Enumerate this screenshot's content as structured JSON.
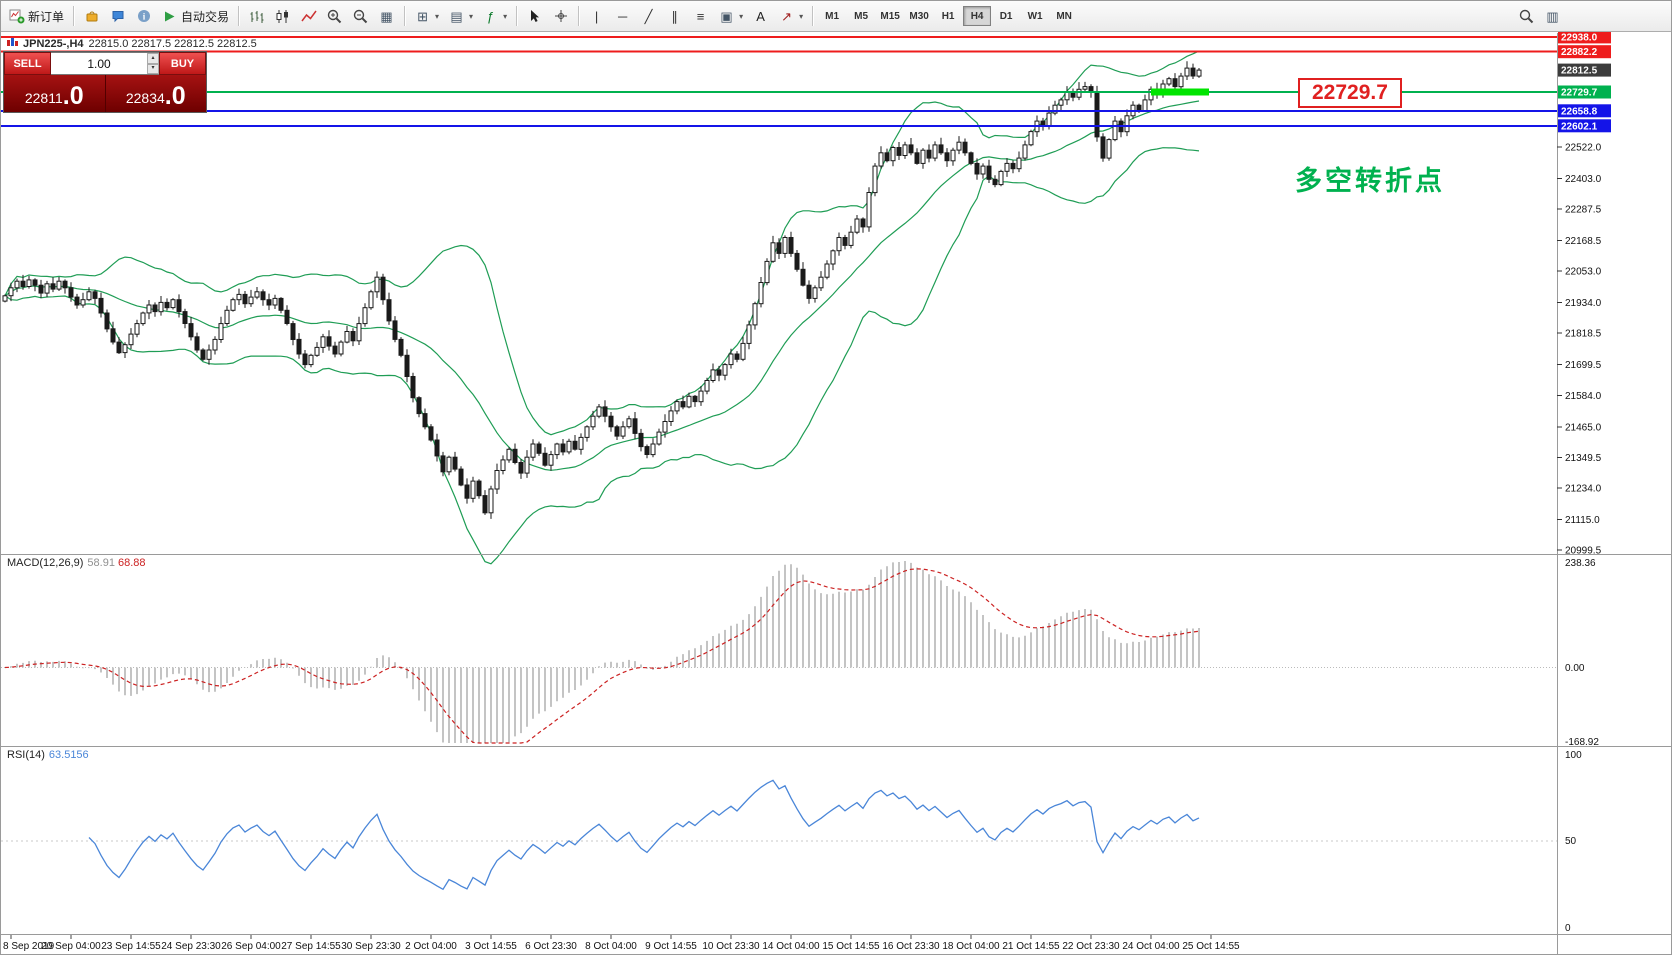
{
  "toolbar": {
    "items": [
      {
        "type": "button",
        "name": "new-order",
        "icon": "new-order-icon",
        "label": "新订单"
      },
      {
        "type": "sep"
      },
      {
        "type": "icon",
        "name": "market",
        "icon": "market-icon"
      },
      {
        "type": "icon",
        "name": "community",
        "icon": "community-icon"
      },
      {
        "type": "icon",
        "name": "info",
        "icon": "info-icon"
      },
      {
        "type": "button",
        "name": "autotrading",
        "icon": "autotrading-play-icon",
        "label": "自动交易"
      },
      {
        "type": "sep"
      },
      {
        "type": "icon",
        "name": "bar-chart",
        "icon": "bar-chart-icon"
      },
      {
        "type": "icon",
        "name": "candlestick-chart",
        "icon": "candlestick-chart-icon"
      },
      {
        "type": "icon",
        "name": "line-chart",
        "icon": "line-chart-icon"
      },
      {
        "type": "icon",
        "name": "zoom-in",
        "icon": "zoom-in-icon"
      },
      {
        "type": "icon",
        "name": "zoom-out",
        "icon": "zoom-out-icon"
      },
      {
        "type": "icon",
        "name": "tile-windows",
        "icon": "tile-windows-icon"
      },
      {
        "type": "sep"
      },
      {
        "type": "icon",
        "name": "new-chart",
        "icon": "new-chart-icon",
        "dropdown": true
      },
      {
        "type": "icon",
        "name": "profiles",
        "icon": "profiles-icon",
        "dropdown": true
      },
      {
        "type": "icon",
        "name": "indicators",
        "icon": "indicators-icon",
        "dropdown": true
      },
      {
        "type": "sep"
      },
      {
        "type": "icon",
        "name": "cursor",
        "icon": "cursor-icon"
      },
      {
        "type": "icon",
        "name": "crosshair",
        "icon": "crosshair-icon"
      },
      {
        "type": "sep"
      },
      {
        "type": "icon",
        "name": "vertical-line",
        "icon": "vertical-line-icon"
      },
      {
        "type": "icon",
        "name": "horizontal-line",
        "icon": "horizontal-line-icon"
      },
      {
        "type": "icon",
        "name": "trendline",
        "icon": "trendline-icon"
      },
      {
        "type": "icon",
        "name": "equidistant-channel",
        "icon": "channel-icon"
      },
      {
        "type": "icon",
        "name": "fibonacci",
        "icon": "fibonacci-icon"
      },
      {
        "type": "icon",
        "name": "shapes",
        "icon": "shapes-icon",
        "dropdown": true
      },
      {
        "type": "icon",
        "name": "text",
        "icon": "text-icon"
      },
      {
        "type": "icon",
        "name": "arrows",
        "icon": "arrows-icon",
        "dropdown": true
      },
      {
        "type": "sep"
      },
      {
        "type": "timeframes"
      },
      {
        "type": "spacer"
      },
      {
        "type": "icon",
        "name": "search",
        "icon": "search-icon"
      },
      {
        "type": "icon",
        "name": "object-list",
        "icon": "object-list-icon"
      },
      {
        "type": "endpad"
      }
    ],
    "timeframes": {
      "options": [
        "M1",
        "M5",
        "M15",
        "M30",
        "H1",
        "H4",
        "D1",
        "W1",
        "MN"
      ],
      "active": "H4"
    }
  },
  "trade_panel": {
    "sell_label": "SELL",
    "buy_label": "BUY",
    "lot": "1.00",
    "sell_price": "22811.0",
    "buy_price": "22834.0"
  },
  "annotations": {
    "price_box": "22729.7",
    "turning_point_note": "多空转折点"
  },
  "colors": {
    "accent_red": "#ee1c1c",
    "accent_green": "#00b14f",
    "accent_blue": "#1414e8",
    "bands_green": "#1f9d55",
    "highlight_green": "#00e400",
    "macd_hist": "#c4c4c4",
    "macd_signal": "#cc2222",
    "rsi_line": "#4a86d8",
    "last_price_label": "#3c3c3c"
  },
  "chart_data": {
    "type": "candlestick",
    "symbol": "JPN225-",
    "timeframe": "H4",
    "title": "JPN225-,H4",
    "current_bar_ohlc": "22815.0 22817.5 22812.5 22812.5",
    "y_range": [
      20999.5,
      22938.0
    ],
    "y_ticks": [
      22522.0,
      22403.0,
      22287.5,
      22168.5,
      22053.0,
      21934.0,
      21818.5,
      21699.5,
      21584.0,
      21465.0,
      21349.5,
      21234.0,
      21115.0,
      20999.5
    ],
    "x_labels": [
      "8 Sep 2019",
      "20 Sep 04:00",
      "23 Sep 14:55",
      "24 Sep 23:30",
      "26 Sep 04:00",
      "27 Sep 14:55",
      "30 Sep 23:30",
      "2 Oct 04:00",
      "3 Oct 14:55",
      "6 Oct 23:30",
      "8 Oct 04:00",
      "9 Oct 14:55",
      "10 Oct 23:30",
      "14 Oct 04:00",
      "15 Oct 14:55",
      "16 Oct 23:30",
      "18 Oct 04:00",
      "21 Oct 14:55",
      "22 Oct 23:30",
      "24 Oct 04:00",
      "25 Oct 14:55"
    ],
    "series": [
      {
        "name": "JPN225- H4 close (approx)",
        "values": [
          21960,
          21990,
          22015,
          21995,
          22020,
          22000,
          21970,
          22005,
          21985,
          22015,
          21990,
          21955,
          21925,
          21945,
          21975,
          21950,
          21895,
          21835,
          21785,
          21745,
          21775,
          21815,
          21855,
          21895,
          21925,
          21900,
          21935,
          21915,
          21945,
          21900,
          21855,
          21805,
          21755,
          21720,
          21755,
          21795,
          21855,
          21905,
          21945,
          21965,
          21930,
          21955,
          21975,
          21945,
          21925,
          21950,
          21905,
          21855,
          21795,
          21740,
          21700,
          21735,
          21765,
          21805,
          21770,
          21740,
          21785,
          21825,
          21790,
          21855,
          21915,
          21975,
          22030,
          21945,
          21865,
          21795,
          21735,
          21655,
          21575,
          21515,
          21465,
          21415,
          21355,
          21295,
          21350,
          21305,
          21245,
          21195,
          21260,
          21205,
          21140,
          21230,
          21300,
          21340,
          21380,
          21330,
          21290,
          21350,
          21400,
          21365,
          21320,
          21360,
          21400,
          21370,
          21410,
          21380,
          21425,
          21465,
          21505,
          21540,
          21505,
          21465,
          21430,
          21465,
          21495,
          21440,
          21390,
          21360,
          21400,
          21445,
          21485,
          21525,
          21560,
          21540,
          21580,
          21560,
          21600,
          21640,
          21680,
          21660,
          21700,
          21740,
          21720,
          21780,
          21850,
          21930,
          22010,
          22090,
          22160,
          22120,
          22180,
          22120,
          22060,
          22000,
          21950,
          21990,
          22030,
          22080,
          22130,
          22180,
          22150,
          22200,
          22250,
          22220,
          22350,
          22450,
          22500,
          22470,
          22520,
          22490,
          22530,
          22500,
          22460,
          22510,
          22480,
          22530,
          22500,
          22470,
          22510,
          22540,
          22500,
          22460,
          22420,
          22450,
          22400,
          22380,
          22430,
          22460,
          22440,
          22480,
          22530,
          22580,
          22620,
          22600,
          22650,
          22680,
          22700,
          22730,
          22710,
          22740,
          22750,
          22730,
          22560,
          22480,
          22550,
          22620,
          22580,
          22640,
          22680,
          22660,
          22700,
          22740,
          22720,
          22760,
          22780,
          22750,
          22790,
          22820,
          22790,
          22812.5
        ]
      }
    ],
    "overlay": {
      "name": "Bollinger Bands",
      "color": "#1f9d55"
    },
    "levels": [
      {
        "price": 22938.0,
        "label": "22938.0",
        "color": "#ee1c1c",
        "type": "hline"
      },
      {
        "price": 22882.2,
        "label": "22882.2",
        "color": "#ee1c1c",
        "type": "hline"
      },
      {
        "price": 22812.5,
        "label": "22812.5",
        "color": "#3c3c3c",
        "type": "last-price"
      },
      {
        "price": 22729.7,
        "label": "22729.7",
        "color": "#00b14f",
        "type": "hline"
      },
      {
        "price": 22658.8,
        "label": "22658.8",
        "color": "#1414e8",
        "type": "hline"
      },
      {
        "price": 22602.1,
        "label": "22602.1",
        "color": "#1414e8",
        "type": "hline"
      }
    ],
    "highlight": {
      "price": 22729.7,
      "from_candle": 191,
      "to_candle": 200,
      "color": "#00e400"
    },
    "indicators": [
      {
        "label": "MACD(12,26,9)",
        "value_main": "58.91",
        "value_signal": "68.88",
        "scale": [
          "238.36",
          "0.00",
          "-168.92"
        ]
      },
      {
        "label": "RSI(14)",
        "value": "63.5156",
        "scale": [
          "100",
          "50",
          "0"
        ]
      }
    ]
  }
}
